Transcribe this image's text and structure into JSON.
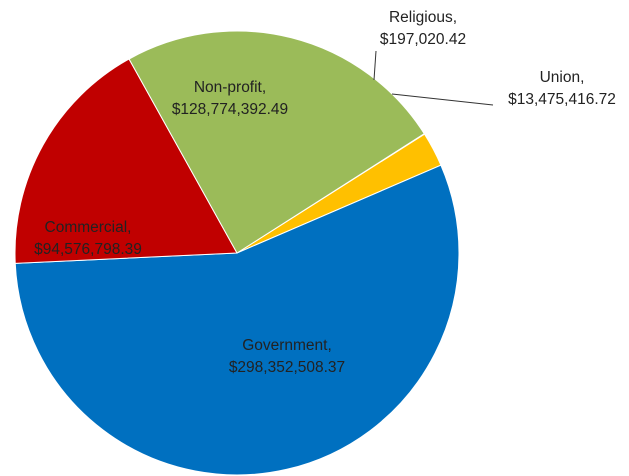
{
  "chart_data": {
    "type": "pie",
    "title": "",
    "series": [
      {
        "name": "",
        "slices": [
          {
            "category": "Religious",
            "value": 197020.42,
            "value_text": "$197,020.42",
            "color": "#ffc000"
          },
          {
            "category": "Union",
            "value": 13475416.72,
            "value_text": "$13,475,416.72",
            "color": "#ffc000"
          },
          {
            "category": "Government",
            "value": 298352508.37,
            "value_text": "$298,352,508.37",
            "color": "#0070c0"
          },
          {
            "category": "Commercial",
            "value": 94576798.39,
            "value_text": "$94,576,798.39",
            "color": "#c00000"
          },
          {
            "category": "Non-profit",
            "value": 128774392.49,
            "value_text": "$128,774,392.49",
            "color": "#9bbb59"
          }
        ]
      }
    ],
    "legend": "none",
    "data_labels": "category and value"
  }
}
